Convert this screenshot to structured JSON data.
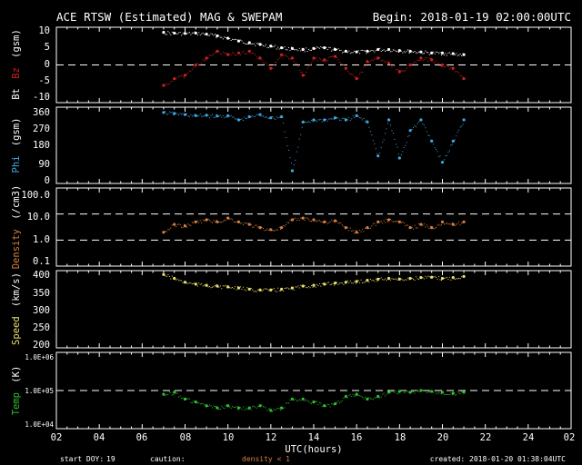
{
  "header": {
    "title": "ACE RTSW (Estimated) MAG & SWEPAM",
    "begin": "Begin: 2018-01-19 02:00:00UTC"
  },
  "footer": {
    "start_doy_label": "start DOY:",
    "start_doy_value": "19",
    "caution_label": "caution:",
    "caution_text": "density < 1",
    "created": "created: 2018-01-20 01:38:04UTC"
  },
  "colors": {
    "bt": "#ffffff",
    "bz": "#d02020",
    "phi": "#40a8e0",
    "density": "#d88040",
    "speed": "#e8e070",
    "temp": "#30c030",
    "caution": "#d88040"
  },
  "chart_data": {
    "type": "scatter",
    "x_axis": {
      "label": "UTC(hours)",
      "ticks": [
        "02",
        "04",
        "06",
        "08",
        "10",
        "12",
        "14",
        "16",
        "18",
        "20",
        "22",
        "24",
        "02"
      ],
      "range_hours": [
        2,
        26
      ]
    },
    "panels": [
      {
        "id": "mag",
        "ylabel_parts": [
          "Bt",
          "Bz",
          "(gsm)"
        ],
        "yticks": [
          "10",
          "5",
          "0",
          "-5",
          "-10"
        ],
        "ylim": [
          -11,
          11
        ],
        "dashed_lines": [
          0
        ],
        "series": [
          {
            "name": "Bt",
            "color_key": "bt",
            "x": [
              7.0,
              7.5,
              8.0,
              8.5,
              9.0,
              9.5,
              10.0,
              10.5,
              11.0,
              11.5,
              12.0,
              12.5,
              13.0,
              13.5,
              14.0,
              14.5,
              15.0,
              15.5,
              16.0,
              16.5,
              17.0,
              17.5,
              18.0,
              18.5,
              19.0,
              19.5,
              20.0,
              20.5,
              21.0
            ],
            "y": [
              9.5,
              9.3,
              9.2,
              9.3,
              9.0,
              8.5,
              7.8,
              7.0,
              6.5,
              6.0,
              5.5,
              5.0,
              4.8,
              4.5,
              4.8,
              5.0,
              4.5,
              4.0,
              3.8,
              4.0,
              4.5,
              4.5,
              4.2,
              4.0,
              3.8,
              3.5,
              3.5,
              3.3,
              3.0
            ]
          },
          {
            "name": "Bz",
            "color_key": "bz",
            "x": [
              7.0,
              7.5,
              8.0,
              8.5,
              9.0,
              9.5,
              10.0,
              10.5,
              11.0,
              11.5,
              12.0,
              12.5,
              13.0,
              13.5,
              14.0,
              14.5,
              15.0,
              15.5,
              16.0,
              16.5,
              17.0,
              17.5,
              18.0,
              18.5,
              19.0,
              19.5,
              20.0,
              20.5,
              21.0
            ],
            "y": [
              -6.0,
              -4.0,
              -3.0,
              0.0,
              2.0,
              4.0,
              3.0,
              3.5,
              4.0,
              2.0,
              -1.0,
              3.0,
              2.0,
              -3.0,
              2.0,
              1.5,
              2.5,
              -1.0,
              -4.0,
              1.0,
              2.0,
              0.5,
              -2.0,
              0.0,
              2.0,
              1.5,
              0.0,
              -1.0,
              -4.0
            ]
          }
        ]
      },
      {
        "id": "phi",
        "ylabel_parts": [
          "Phi",
          "(gsm)"
        ],
        "yticks": [
          "360",
          "270",
          "180",
          "90",
          "0"
        ],
        "ylim": [
          0,
          360
        ],
        "dashed_lines": [],
        "series": [
          {
            "name": "Phi",
            "color_key": "phi",
            "x": [
              7.0,
              7.5,
              8.0,
              8.5,
              9.0,
              9.5,
              10.0,
              10.5,
              11.0,
              11.5,
              12.0,
              12.5,
              13.0,
              13.5,
              14.0,
              14.5,
              15.0,
              15.5,
              16.0,
              16.5,
              17.0,
              17.5,
              18.0,
              18.5,
              19.0,
              19.5,
              20.0,
              20.5,
              21.0
            ],
            "y": [
              335,
              330,
              325,
              320,
              322,
              318,
              320,
              300,
              315,
              325,
              310,
              315,
              60,
              290,
              300,
              300,
              310,
              300,
              320,
              290,
              130,
              300,
              120,
              250,
              300,
              200,
              100,
              200,
              300
            ]
          }
        ]
      },
      {
        "id": "density",
        "ylabel_parts": [
          "Density",
          "(/cm3)"
        ],
        "yticks": [
          "100.0",
          "10.0",
          "1.0",
          "0.1"
        ],
        "ylim_log10": [
          -1,
          2
        ],
        "dashed_lines": [
          10.0,
          1.0
        ],
        "series": [
          {
            "name": "Density",
            "color_key": "density",
            "x": [
              7.0,
              7.5,
              8.0,
              8.5,
              9.0,
              9.5,
              10.0,
              10.5,
              11.0,
              11.5,
              12.0,
              12.5,
              13.0,
              13.5,
              14.0,
              14.5,
              15.0,
              15.5,
              16.0,
              16.5,
              17.0,
              17.5,
              18.0,
              18.5,
              19.0,
              19.5,
              20.0,
              20.5,
              21.0
            ],
            "y": [
              2.0,
              4.0,
              3.5,
              5.0,
              6.0,
              5.0,
              7.0,
              5.0,
              4.0,
              3.0,
              2.5,
              3.0,
              6.0,
              7.0,
              6.0,
              5.0,
              5.5,
              3.0,
              2.0,
              3.0,
              5.0,
              6.0,
              5.0,
              3.0,
              4.0,
              3.0,
              5.0,
              4.0,
              5.0
            ]
          }
        ]
      },
      {
        "id": "speed",
        "ylabel_parts": [
          "Speed",
          "(km/s)"
        ],
        "yticks": [
          "400",
          "350",
          "300",
          "250",
          "200"
        ],
        "ylim": [
          200,
          400
        ],
        "dashed_lines": [],
        "series": [
          {
            "name": "Speed",
            "color_key": "speed",
            "x": [
              7.0,
              7.5,
              8.0,
              8.5,
              9.0,
              9.5,
              10.0,
              10.5,
              11.0,
              11.5,
              12.0,
              12.5,
              13.0,
              13.5,
              14.0,
              14.5,
              15.0,
              15.5,
              16.0,
              16.5,
              17.0,
              17.5,
              18.0,
              18.5,
              19.0,
              19.5,
              20.0,
              20.5,
              21.0
            ],
            "y": [
              390,
              380,
              370,
              365,
              362,
              360,
              358,
              355,
              352,
              350,
              350,
              352,
              355,
              360,
              362,
              365,
              368,
              370,
              372,
              375,
              378,
              380,
              378,
              380,
              382,
              383,
              380,
              382,
              385
            ]
          }
        ]
      },
      {
        "id": "temp",
        "ylabel_parts": [
          "Temp",
          "(K)"
        ],
        "yticks": [
          "1.0E+06",
          "1.0E+05",
          "1.0E+04"
        ],
        "ylim_log10": [
          4,
          6
        ],
        "dashed_lines": [
          100000
        ],
        "series": [
          {
            "name": "Temp",
            "color_key": "temp",
            "x": [
              7.0,
              7.5,
              8.0,
              8.5,
              9.0,
              9.5,
              10.0,
              10.5,
              11.0,
              11.5,
              12.0,
              12.5,
              13.0,
              13.5,
              14.0,
              14.5,
              15.0,
              15.5,
              16.0,
              16.5,
              17.0,
              17.5,
              18.0,
              18.5,
              19.0,
              19.5,
              20.0,
              20.5,
              21.0
            ],
            "y": [
              80000,
              90000,
              60000,
              50000,
              40000,
              35000,
              40000,
              35000,
              35000,
              40000,
              30000,
              35000,
              60000,
              60000,
              50000,
              40000,
              45000,
              70000,
              80000,
              60000,
              70000,
              90000,
              95000,
              90000,
              100000,
              95000,
              90000,
              85000,
              90000
            ]
          }
        ]
      }
    ]
  }
}
